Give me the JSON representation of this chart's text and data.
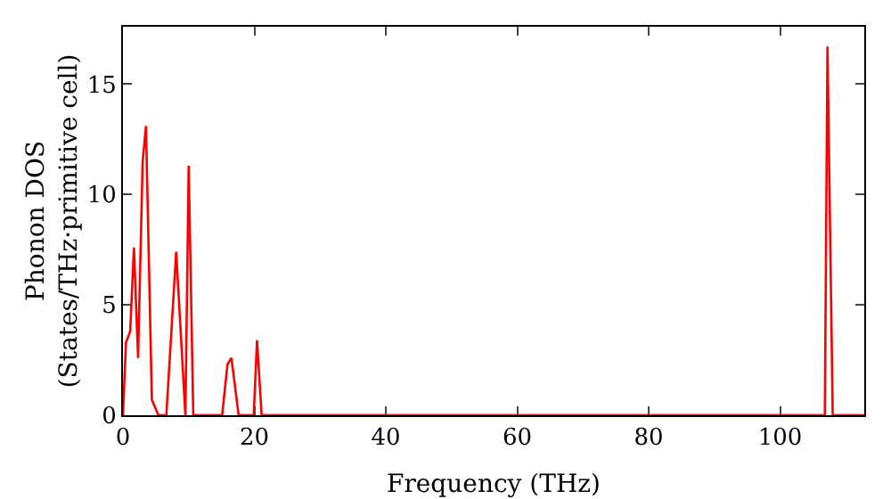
{
  "chart_data": {
    "type": "line",
    "xlabel": "Frequency (THz)",
    "ylabel": "Phonon DOS\n(States/THz·primitive cell)",
    "x": [
      0,
      0.46,
      1.1,
      1.67,
      2.3,
      3.0,
      3.5,
      4.4,
      5.4,
      6.6,
      8.1,
      9.5,
      10.0,
      10.7,
      15.1,
      15.9,
      16.5,
      17.6,
      19.9,
      20.4,
      21.1,
      106.8,
      107.2,
      108.0,
      112.8
    ],
    "series": [
      {
        "color": "#ff0000",
        "values": [
          0,
          3.3,
          3.8,
          7.6,
          2.6,
          11.5,
          13.1,
          0.7,
          0,
          0,
          7.4,
          0,
          11.3,
          0,
          0,
          2.3,
          2.6,
          0,
          0,
          3.4,
          0,
          0,
          16.7,
          0,
          0
        ]
      }
    ],
    "xlim": [
      0,
      112.8
    ],
    "ylim": [
      0,
      17.6
    ],
    "xticks": [
      0,
      20,
      40,
      60,
      80,
      100
    ],
    "yticks": [
      0,
      5,
      10,
      15
    ],
    "grid": false,
    "marker": "none",
    "line_style": "solid"
  }
}
